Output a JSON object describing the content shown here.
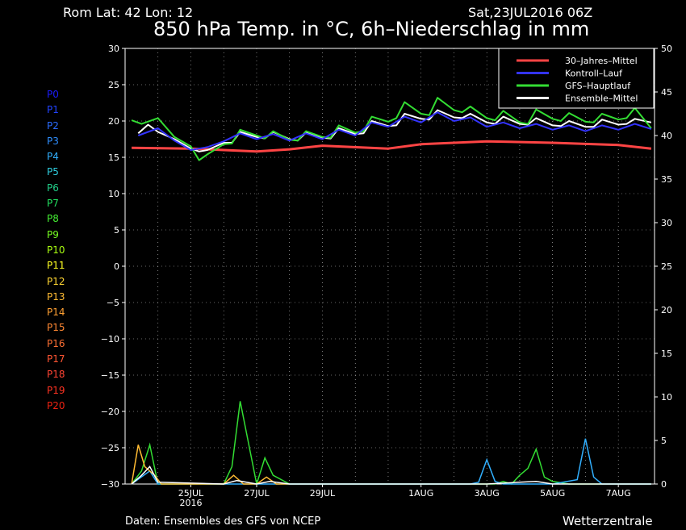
{
  "header": {
    "location": "Rom   Lat: 42 Lon: 12",
    "date": "Sat,23JUL2016 06Z",
    "title": "850 hPa Temp. in °C, 6h–Niederschlag in mm"
  },
  "footer": {
    "source": "Daten: Ensembles des GFS von NCEP",
    "brand": "Wetterzentrale"
  },
  "members": [
    {
      "label": "P0",
      "color": "#1c1cff"
    },
    {
      "label": "P1",
      "color": "#2244ff"
    },
    {
      "label": "P2",
      "color": "#2a6cff"
    },
    {
      "label": "P3",
      "color": "#2f8fff"
    },
    {
      "label": "P4",
      "color": "#31b0ff"
    },
    {
      "label": "P5",
      "color": "#2fcfe0"
    },
    {
      "label": "P6",
      "color": "#22d08a"
    },
    {
      "label": "P7",
      "color": "#22e060"
    },
    {
      "label": "P8",
      "color": "#44ee33"
    },
    {
      "label": "P9",
      "color": "#77ff22"
    },
    {
      "label": "P10",
      "color": "#aaff11"
    },
    {
      "label": "P11",
      "color": "#ffff22"
    },
    {
      "label": "P12",
      "color": "#ffd633"
    },
    {
      "label": "P13",
      "color": "#ffbb33"
    },
    {
      "label": "P14",
      "color": "#ffa033"
    },
    {
      "label": "P15",
      "color": "#ff8833"
    },
    {
      "label": "P16",
      "color": "#ff7033"
    },
    {
      "label": "P17",
      "color": "#ff5533"
    },
    {
      "label": "P18",
      "color": "#ff4433"
    },
    {
      "label": "P19",
      "color": "#ff3322"
    },
    {
      "label": "P20",
      "color": "#ee2211"
    }
  ],
  "chart_data": {
    "type": "line",
    "y_left_ticks": [
      "30",
      "25",
      "20",
      "15",
      "10",
      "5",
      "0",
      "−5",
      "−10",
      "−15",
      "−20",
      "−25",
      "−30"
    ],
    "y_right_ticks": [
      "50",
      "45",
      "40",
      "35",
      "30",
      "25",
      "20",
      "15",
      "10",
      "5",
      "0"
    ],
    "ylim_left": [
      -30,
      30
    ],
    "ylim_right": [
      0,
      50
    ],
    "x_ticks": [
      {
        "label": "25JUL",
        "sub": "2016",
        "day": 2.0
      },
      {
        "label": "27JUL",
        "sub": "",
        "day": 4.0
      },
      {
        "label": "29JUL",
        "sub": "",
        "day": 6.0
      },
      {
        "label": "1AUG",
        "sub": "",
        "day": 9.0
      },
      {
        "label": "3AUG",
        "sub": "",
        "day": 11.0
      },
      {
        "label": "5AUG",
        "sub": "",
        "day": 13.0
      },
      {
        "label": "7AUG",
        "sub": "",
        "day": 15.0
      }
    ],
    "xlim_days": [
      0,
      16.1
    ],
    "grid": true,
    "legend": {
      "position": "top-right",
      "entries": [
        {
          "name": "30–Jahres–Mittel",
          "color": "#ff4444"
        },
        {
          "name": "Kontroll–Lauf",
          "color": "#3333ff"
        },
        {
          "name": "GFS–Hauptlauf",
          "color": "#33dd33"
        },
        {
          "name": "Ensemble–Mittel",
          "color": "#ffffff"
        }
      ]
    },
    "series": [
      {
        "name": "30–Jahres–Mittel",
        "color": "#ff4444",
        "width": 3,
        "x": [
          0.2,
          2,
          4,
          5,
          6,
          8,
          9,
          11,
          13,
          15,
          16
        ],
        "y": [
          16.3,
          16.2,
          15.8,
          16.1,
          16.6,
          16.2,
          16.8,
          17.2,
          17.0,
          16.7,
          16.2
        ]
      },
      {
        "name": "Ensemble–Mittel",
        "color": "#ffffff",
        "width": 2,
        "x": [
          0.4,
          0.7,
          1.0,
          1.5,
          2.0,
          2.25,
          2.5,
          3.0,
          3.25,
          3.5,
          4.0,
          4.25,
          4.5,
          5.0,
          5.25,
          5.5,
          6.0,
          6.25,
          6.5,
          7.0,
          7.25,
          7.5,
          8.0,
          8.25,
          8.5,
          9.0,
          9.25,
          9.5,
          10.0,
          10.25,
          10.5,
          11.0,
          11.25,
          11.5,
          12.0,
          12.25,
          12.5,
          13.0,
          13.25,
          13.5,
          14.0,
          14.25,
          14.5,
          15.0,
          15.25,
          15.5,
          16.0
        ],
        "y": [
          18.3,
          19.5,
          18.5,
          17.5,
          16.2,
          15.8,
          16.0,
          17.0,
          17.0,
          18.5,
          17.8,
          17.6,
          18.5,
          17.5,
          17.3,
          18.4,
          17.7,
          17.6,
          19.0,
          18.2,
          18.3,
          20.0,
          19.3,
          19.4,
          21.0,
          20.3,
          20.2,
          21.5,
          20.5,
          20.4,
          21.0,
          19.8,
          19.6,
          20.6,
          19.6,
          19.5,
          20.4,
          19.4,
          19.3,
          20.0,
          19.2,
          19.2,
          20.2,
          19.5,
          19.6,
          20.3,
          19.8
        ]
      },
      {
        "name": "GFS–Hauptlauf",
        "color": "#33dd33",
        "width": 2,
        "x": [
          0.2,
          0.5,
          1.0,
          1.5,
          2.0,
          2.25,
          2.5,
          3.0,
          3.25,
          3.5,
          4.0,
          4.25,
          4.5,
          5.0,
          5.25,
          5.5,
          6.0,
          6.25,
          6.5,
          7.0,
          7.25,
          7.5,
          8.0,
          8.25,
          8.5,
          9.0,
          9.25,
          9.5,
          10.0,
          10.25,
          10.5,
          11.0,
          11.25,
          11.5,
          12.0,
          12.25,
          12.5,
          13.0,
          13.25,
          13.5,
          14.0,
          14.25,
          14.5,
          15.0,
          15.25,
          15.5,
          16.0
        ],
        "y": [
          20.1,
          19.6,
          20.4,
          17.8,
          16.5,
          14.6,
          15.4,
          16.8,
          16.9,
          18.8,
          18.0,
          17.6,
          18.6,
          17.4,
          17.3,
          18.6,
          17.8,
          17.7,
          19.4,
          18.4,
          18.6,
          20.6,
          19.9,
          20.4,
          22.6,
          21.0,
          20.8,
          23.2,
          21.5,
          21.2,
          22.0,
          20.4,
          20.1,
          21.4,
          19.8,
          19.6,
          21.6,
          20.3,
          20.0,
          21.1,
          19.9,
          19.8,
          21.0,
          20.2,
          20.4,
          21.8,
          19.0
        ]
      },
      {
        "name": "Kontroll–Lauf",
        "color": "#3333ff",
        "width": 2,
        "x": [
          0.4,
          1.0,
          1.5,
          2.0,
          2.5,
          3.0,
          3.5,
          4.0,
          4.5,
          5.0,
          5.5,
          6.0,
          6.5,
          7.0,
          7.5,
          8.0,
          8.5,
          9.0,
          9.5,
          10.0,
          10.5,
          11.0,
          11.5,
          12.0,
          12.5,
          13.0,
          13.5,
          14.0,
          14.5,
          15.0,
          15.5,
          16.0
        ],
        "y": [
          18.0,
          19.0,
          17.3,
          16.0,
          16.4,
          17.2,
          18.3,
          17.5,
          18.2,
          17.3,
          18.3,
          17.5,
          18.8,
          18.0,
          19.8,
          19.2,
          20.6,
          19.8,
          21.2,
          20.0,
          20.5,
          19.2,
          19.8,
          19.0,
          19.6,
          18.8,
          19.4,
          18.6,
          19.4,
          18.8,
          19.6,
          18.9
        ]
      }
    ],
    "precip_series": [
      {
        "name": "GFS–Hauptlauf",
        "color": "#33dd33",
        "x": [
          0.2,
          0.5,
          0.75,
          1.0,
          3.0,
          3.25,
          3.5,
          4.0,
          4.25,
          4.5,
          5.0,
          6.0,
          11.25,
          11.5,
          11.75,
          12.0,
          12.25,
          12.5,
          12.75,
          13.0,
          13.5,
          16.0
        ],
        "y": [
          0,
          1.5,
          4.5,
          0,
          0,
          2.0,
          9.5,
          0,
          3.0,
          1.0,
          0,
          0,
          0,
          0.3,
          0,
          1.0,
          1.8,
          4.0,
          0.8,
          0.3,
          0,
          0
        ]
      },
      {
        "name": "P4",
        "color": "#31b0ff",
        "x": [
          0.2,
          0.75,
          1.0,
          10.5,
          10.75,
          11.0,
          11.25,
          11.5,
          13.0,
          13.75,
          14.0,
          14.25,
          14.5,
          16.0
        ],
        "y": [
          0,
          1.5,
          0,
          0,
          0.2,
          2.8,
          0.3,
          0,
          0,
          0.5,
          5.2,
          0.8,
          0,
          0
        ]
      },
      {
        "name": "P13",
        "color": "#ffbb33",
        "x": [
          0.2,
          0.4,
          0.6,
          0.9,
          1.1,
          3.0,
          3.3,
          3.6,
          4.0,
          4.3,
          4.6,
          5.0
        ],
        "y": [
          0,
          4.5,
          2.0,
          1.0,
          0,
          0,
          1.0,
          0,
          0,
          0.8,
          0,
          0
        ]
      },
      {
        "name": "Ensemble–Mittel",
        "color": "#ffffff",
        "x": [
          0.2,
          0.5,
          0.75,
          1.0,
          3.0,
          3.4,
          4.0,
          4.4,
          5.0,
          11.0,
          12.0,
          12.5,
          13.0,
          16.0
        ],
        "y": [
          0,
          1.0,
          2.0,
          0.2,
          0,
          0.4,
          0,
          0.3,
          0,
          0,
          0.2,
          0.3,
          0,
          0
        ]
      }
    ]
  }
}
